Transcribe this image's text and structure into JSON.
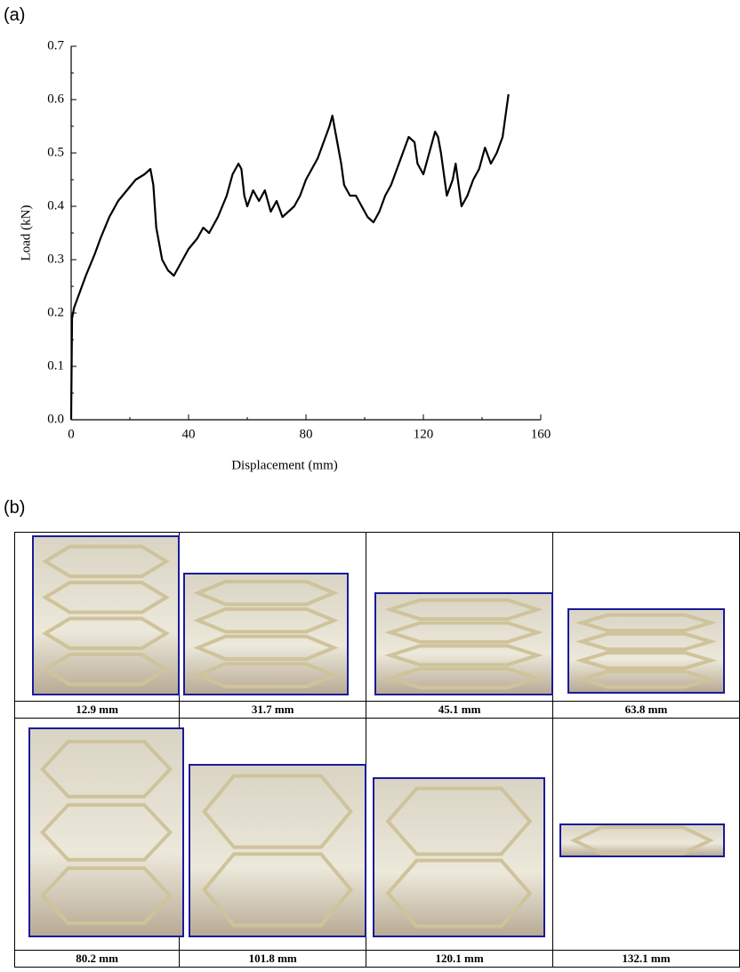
{
  "panel_labels": [
    "(a)",
    "(b)"
  ],
  "chart_data": {
    "type": "line",
    "xlabel": "Displacement (mm)",
    "ylabel": "Load (kN)",
    "xlim": [
      0,
      160
    ],
    "ylim": [
      0,
      0.7
    ],
    "xticks": [
      0,
      40,
      80,
      120,
      160
    ],
    "yticks": [
      {
        "value": 0,
        "label": "0.0"
      },
      0.1,
      0.2,
      0.3,
      0.4,
      0.5,
      0.6,
      0.7
    ],
    "xminorticks": [
      20,
      60,
      100,
      140
    ],
    "yminorticks": [
      0.05,
      0.15,
      0.25,
      0.35,
      0.45,
      0.55,
      0.65
    ],
    "color": "#000000",
    "x": [
      0,
      0.3,
      1,
      3,
      5,
      8,
      10,
      13,
      16,
      19,
      22,
      25,
      27,
      28,
      29,
      30,
      31,
      33,
      35,
      37,
      40,
      43,
      45,
      47,
      50,
      53,
      55,
      57,
      58,
      59,
      60,
      62,
      64,
      66,
      68,
      70,
      72,
      74,
      76,
      78,
      80,
      82,
      84,
      86,
      88,
      89,
      90,
      92,
      93,
      95,
      97,
      99,
      101,
      103,
      105,
      107,
      109,
      111,
      113,
      115,
      117,
      118,
      120,
      122,
      124,
      125,
      126,
      128,
      130,
      131,
      132,
      133,
      135,
      137,
      139,
      141,
      143,
      145,
      147,
      148,
      149
    ],
    "values": [
      0,
      0.19,
      0.21,
      0.24,
      0.27,
      0.31,
      0.34,
      0.38,
      0.41,
      0.43,
      0.45,
      0.46,
      0.47,
      0.44,
      0.36,
      0.33,
      0.3,
      0.28,
      0.27,
      0.29,
      0.32,
      0.34,
      0.36,
      0.35,
      0.38,
      0.42,
      0.46,
      0.48,
      0.47,
      0.42,
      0.4,
      0.43,
      0.41,
      0.43,
      0.39,
      0.41,
      0.38,
      0.39,
      0.4,
      0.42,
      0.45,
      0.47,
      0.49,
      0.52,
      0.55,
      0.57,
      0.54,
      0.48,
      0.44,
      0.42,
      0.42,
      0.4,
      0.38,
      0.37,
      0.39,
      0.42,
      0.44,
      0.47,
      0.5,
      0.53,
      0.52,
      0.48,
      0.46,
      0.5,
      0.54,
      0.53,
      0.5,
      0.42,
      0.45,
      0.48,
      0.44,
      0.4,
      0.42,
      0.45,
      0.47,
      0.51,
      0.48,
      0.5,
      0.53,
      0.57,
      0.61
    ]
  },
  "photos": [
    {
      "caption": "12.9 mm"
    },
    {
      "caption": "31.7 mm"
    },
    {
      "caption": "45.1 mm"
    },
    {
      "caption": "63.8 mm"
    },
    {
      "caption": "80.2 mm"
    },
    {
      "caption": "101.8 mm"
    },
    {
      "caption": "120.1 mm"
    },
    {
      "caption": "132.1 mm"
    }
  ]
}
